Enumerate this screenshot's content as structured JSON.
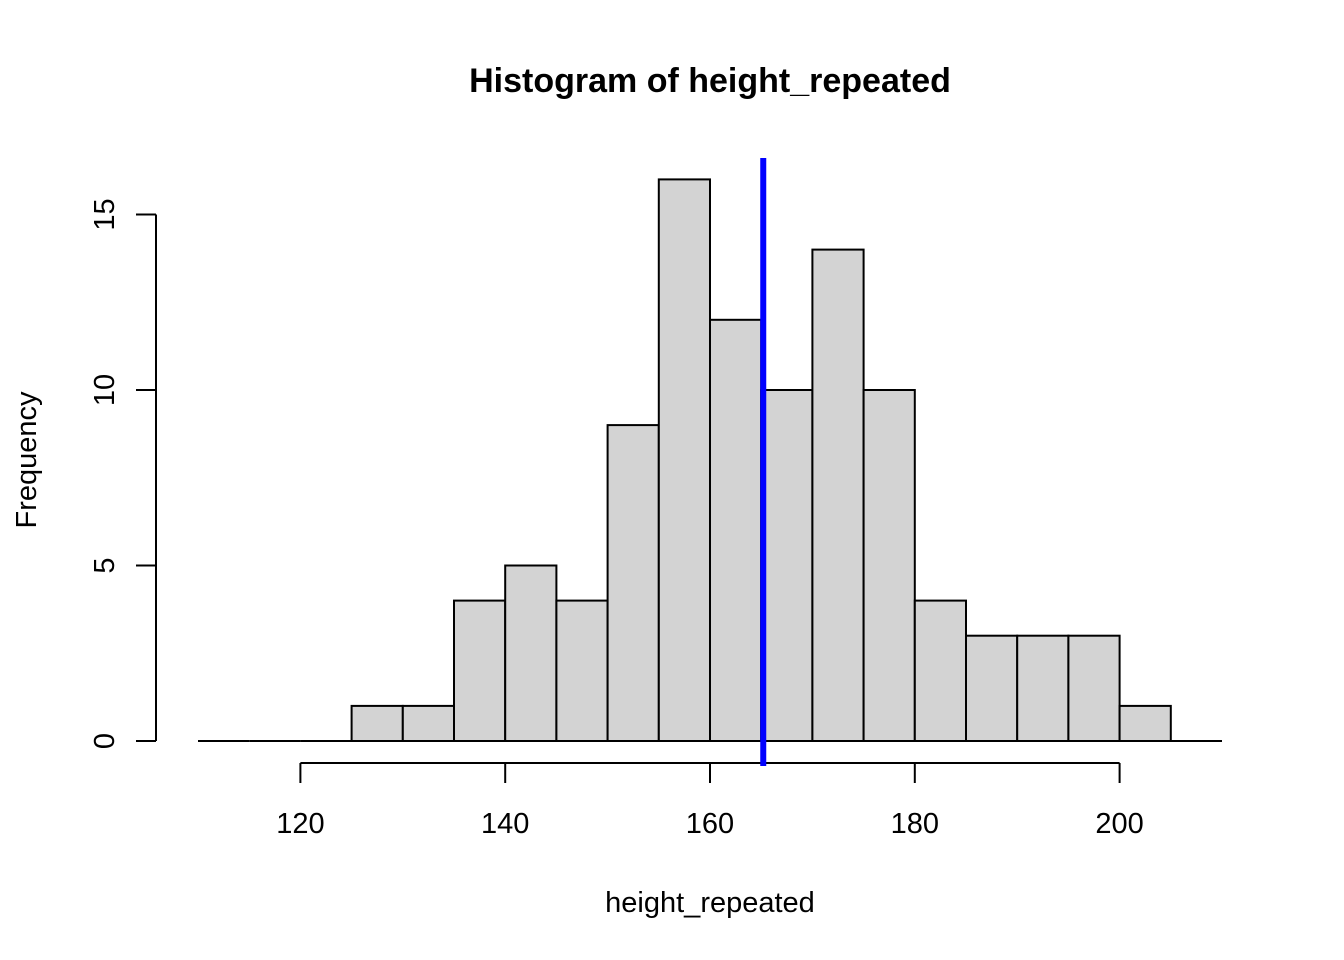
{
  "chart_data": {
    "type": "bar",
    "title": "Histogram of height_repeated",
    "xlabel": "height_repeated",
    "ylabel": "Frequency",
    "bins": [
      {
        "from": 110,
        "to": 115,
        "count": 0
      },
      {
        "from": 115,
        "to": 120,
        "count": 0
      },
      {
        "from": 120,
        "to": 125,
        "count": 0
      },
      {
        "from": 125,
        "to": 130,
        "count": 1
      },
      {
        "from": 130,
        "to": 135,
        "count": 1
      },
      {
        "from": 135,
        "to": 140,
        "count": 4
      },
      {
        "from": 140,
        "to": 145,
        "count": 5
      },
      {
        "from": 145,
        "to": 150,
        "count": 4
      },
      {
        "from": 150,
        "to": 155,
        "count": 9
      },
      {
        "from": 155,
        "to": 160,
        "count": 16
      },
      {
        "from": 160,
        "to": 165,
        "count": 12
      },
      {
        "from": 165,
        "to": 170,
        "count": 10
      },
      {
        "from": 170,
        "to": 175,
        "count": 14
      },
      {
        "from": 175,
        "to": 180,
        "count": 10
      },
      {
        "from": 180,
        "to": 185,
        "count": 4
      },
      {
        "from": 185,
        "to": 190,
        "count": 3
      },
      {
        "from": 190,
        "to": 195,
        "count": 3
      },
      {
        "from": 195,
        "to": 200,
        "count": 3
      },
      {
        "from": 200,
        "to": 205,
        "count": 1
      },
      {
        "from": 205,
        "to": 210,
        "count": 0
      }
    ],
    "xlim": [
      110,
      210
    ],
    "ylim": [
      0,
      16.5
    ],
    "x_ticks": [
      120,
      140,
      160,
      180,
      200
    ],
    "y_ticks": [
      0,
      5,
      10,
      15
    ],
    "vline": {
      "x": 165.2,
      "color": "#0000ff"
    },
    "bar_fill": "#d3d3d3",
    "bar_stroke": "#000000",
    "grid": false,
    "legend": "none"
  }
}
